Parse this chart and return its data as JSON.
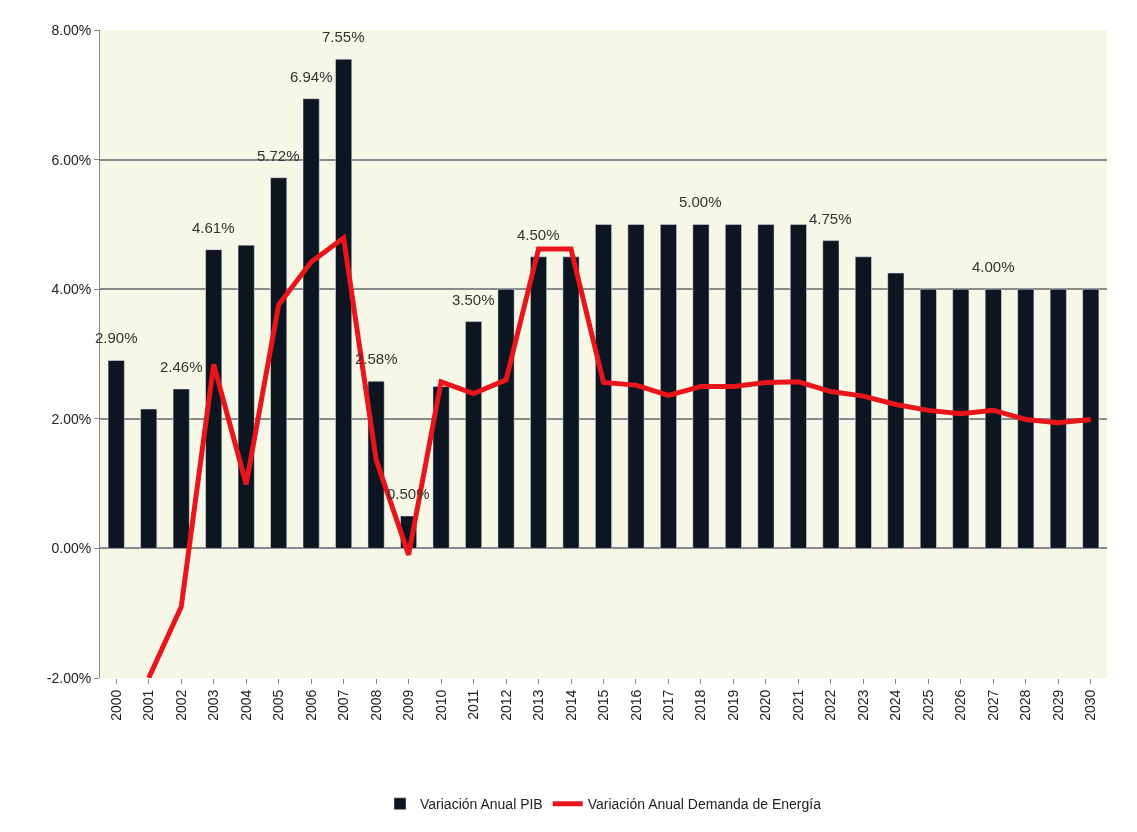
{
  "chart_data": {
    "type": "bar",
    "categories": [
      "2000",
      "2001",
      "2002",
      "2003",
      "2004",
      "2005",
      "2006",
      "2007",
      "2008",
      "2009",
      "2010",
      "2011",
      "2012",
      "2013",
      "2014",
      "2015",
      "2016",
      "2017",
      "2018",
      "2019",
      "2020",
      "2021",
      "2022",
      "2023",
      "2024",
      "2025",
      "2026",
      "2027",
      "2028",
      "2029",
      "2030"
    ],
    "series": [
      {
        "name": "Variación Anual PIB",
        "color": "#0d1520",
        "values": [
          2.9,
          2.15,
          2.46,
          4.61,
          4.68,
          5.72,
          6.94,
          7.55,
          2.58,
          0.5,
          2.5,
          3.5,
          4.0,
          4.5,
          4.5,
          5.0,
          5.0,
          5.0,
          5.0,
          5.0,
          5.0,
          5.0,
          4.75,
          4.5,
          4.25,
          4.0,
          4.0,
          4.0,
          4.0,
          4.0,
          4.0
        ],
        "value_labels": [
          "2.90%",
          null,
          "2.46%",
          "4.61%",
          null,
          "5.72%",
          "6.94%",
          "7.55%",
          "2.58%",
          "0.50%",
          null,
          "3.50%",
          null,
          "4.50%",
          null,
          null,
          null,
          null,
          "5.00%",
          null,
          null,
          null,
          "4.75%",
          null,
          null,
          null,
          null,
          "4.00%",
          null,
          null,
          null
        ]
      },
      {
        "name": "Variación Anual Demanda de Energía",
        "type": "line",
        "color": "#e8161b",
        "values": [
          null,
          -2.0,
          -0.9,
          2.84,
          0.99,
          3.76,
          4.42,
          4.79,
          1.37,
          -0.1,
          2.57,
          2.39,
          2.6,
          4.62,
          4.62,
          2.56,
          2.52,
          2.36,
          2.5,
          2.5,
          2.56,
          2.57,
          2.42,
          2.35,
          2.22,
          2.13,
          2.08,
          2.13,
          1.99,
          1.94,
          1.99
        ]
      }
    ],
    "ylim": [
      -2,
      8
    ],
    "yticks": [
      {
        "value": -2,
        "label": "-2.00%"
      },
      {
        "value": 0,
        "label": "0.00%"
      },
      {
        "value": 2,
        "label": "2.00%"
      },
      {
        "value": 4,
        "label": "4.00%"
      },
      {
        "value": 6,
        "label": "6.00%"
      },
      {
        "value": 8,
        "label": "8.00%"
      }
    ],
    "grid": "y",
    "legend": "bottom",
    "marker": "none",
    "line_style": "solid"
  }
}
